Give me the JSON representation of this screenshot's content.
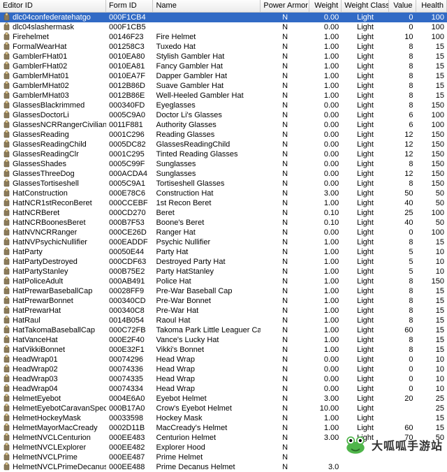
{
  "columns": [
    {
      "label": "Editor ID",
      "class": "c0",
      "align": "left"
    },
    {
      "label": "Form ID",
      "class": "c1",
      "align": "left"
    },
    {
      "label": "Name",
      "class": "c2",
      "align": "left"
    },
    {
      "label": "Power Armor",
      "class": "c3",
      "align": "center"
    },
    {
      "label": "Weight",
      "class": "c4",
      "align": "right"
    },
    {
      "label": "Weight Class",
      "class": "c5",
      "align": "center"
    },
    {
      "label": "Value",
      "class": "c6",
      "align": "right"
    },
    {
      "label": "Health",
      "class": "c7",
      "align": "right"
    }
  ],
  "icon_colors": {
    "body": "#8a7a5a",
    "head": "#d9c28a",
    "outline": "#6b5b3b"
  },
  "selected_row_bg": "#316ac5",
  "selected_row_fg": "#ffffff",
  "header_gradient_top": "#fdfdfd",
  "header_gradient_bottom": "#ebebeb",
  "rows": [
    {
      "sel": true,
      "editor": "dlc04confederatehatgo",
      "form": "000F1CB4",
      "name": "",
      "pa": "N",
      "wt": "0.00",
      "wc": "Light",
      "val": "0",
      "hp": "100"
    },
    {
      "editor": "dlc04slashermask",
      "form": "000F1CB5",
      "name": "",
      "pa": "N",
      "wt": "0.00",
      "wc": "Light",
      "val": "0",
      "hp": "100"
    },
    {
      "editor": "Firehelmet",
      "form": "00146F23",
      "name": "Fire Helmet",
      "pa": "N",
      "wt": "1.00",
      "wc": "Light",
      "val": "10",
      "hp": "100"
    },
    {
      "editor": "FormalWearHat",
      "form": "001258C3",
      "name": "Tuxedo Hat",
      "pa": "N",
      "wt": "1.00",
      "wc": "Light",
      "val": "8",
      "hp": "15"
    },
    {
      "editor": "GamblerFHat01",
      "form": "0010EA80",
      "name": "Stylish Gambler Hat",
      "pa": "N",
      "wt": "1.00",
      "wc": "Light",
      "val": "8",
      "hp": "15"
    },
    {
      "editor": "GamblerFHat02",
      "form": "0010EA81",
      "name": "Fancy Gambler Hat",
      "pa": "N",
      "wt": "1.00",
      "wc": "Light",
      "val": "8",
      "hp": "15"
    },
    {
      "editor": "GamblerMHat01",
      "form": "0010EA7F",
      "name": "Dapper Gambler Hat",
      "pa": "N",
      "wt": "1.00",
      "wc": "Light",
      "val": "8",
      "hp": "15"
    },
    {
      "editor": "GamblerMHat02",
      "form": "0012B86D",
      "name": "Suave Gambler Hat",
      "pa": "N",
      "wt": "1.00",
      "wc": "Light",
      "val": "8",
      "hp": "15"
    },
    {
      "editor": "GamblerMHat03",
      "form": "0012B86E",
      "name": "Well-Heeled Gambler Hat",
      "pa": "N",
      "wt": "1.00",
      "wc": "Light",
      "val": "8",
      "hp": "15"
    },
    {
      "editor": "GlassesBlackrimmed",
      "form": "000340FD",
      "name": "Eyeglasses",
      "pa": "N",
      "wt": "0.00",
      "wc": "Light",
      "val": "8",
      "hp": "150"
    },
    {
      "editor": "GlassesDoctorLi",
      "form": "0005C9A0",
      "name": "Doctor Li's Glasses",
      "pa": "N",
      "wt": "0.00",
      "wc": "Light",
      "val": "6",
      "hp": "100"
    },
    {
      "editor": "GlassesNCRRangerCivilian",
      "form": "0011F881",
      "name": "Authority Glasses",
      "pa": "N",
      "wt": "0.00",
      "wc": "Light",
      "val": "6",
      "hp": "100"
    },
    {
      "editor": "GlassesReading",
      "form": "0001C296",
      "name": "Reading Glasses",
      "pa": "N",
      "wt": "0.00",
      "wc": "Light",
      "val": "12",
      "hp": "150"
    },
    {
      "editor": "GlassesReadingChild",
      "form": "0005DC82",
      "name": "GlassesReadingChild",
      "pa": "N",
      "wt": "0.00",
      "wc": "Light",
      "val": "12",
      "hp": "150"
    },
    {
      "editor": "GlassesReadingClr",
      "form": "0001C295",
      "name": "Tinted Reading Glasses",
      "pa": "N",
      "wt": "0.00",
      "wc": "Light",
      "val": "12",
      "hp": "150"
    },
    {
      "editor": "GlassesShades",
      "form": "0005C99F",
      "name": "Sunglasses",
      "pa": "N",
      "wt": "0.00",
      "wc": "Light",
      "val": "8",
      "hp": "150"
    },
    {
      "editor": "GlassesThreeDog",
      "form": "000ACDA4",
      "name": "Sunglasses",
      "pa": "N",
      "wt": "0.00",
      "wc": "Light",
      "val": "12",
      "hp": "150"
    },
    {
      "editor": "GlassesTortiseshell",
      "form": "0005C9A1",
      "name": "Tortiseshell Glasses",
      "pa": "N",
      "wt": "0.00",
      "wc": "Light",
      "val": "8",
      "hp": "150"
    },
    {
      "editor": "HatConstruction",
      "form": "000E78C6",
      "name": "Construction Hat",
      "pa": "N",
      "wt": "3.00",
      "wc": "Light",
      "val": "50",
      "hp": "50"
    },
    {
      "editor": "HatNCR1stReconBeret",
      "form": "000CCEBF",
      "name": "1st Recon Beret",
      "pa": "N",
      "wt": "1.00",
      "wc": "Light",
      "val": "40",
      "hp": "50"
    },
    {
      "editor": "HatNCRBeret",
      "form": "000CD270",
      "name": "Beret",
      "pa": "N",
      "wt": "0.10",
      "wc": "Light",
      "val": "25",
      "hp": "100"
    },
    {
      "editor": "HatNCRBoonesBeret",
      "form": "000B7F53",
      "name": "Boone's Beret",
      "pa": "N",
      "wt": "0.10",
      "wc": "Light",
      "val": "40",
      "hp": "50"
    },
    {
      "editor": "HatNVNCRRanger",
      "form": "000CE26D",
      "name": "Ranger Hat",
      "pa": "N",
      "wt": "0.00",
      "wc": "Light",
      "val": "0",
      "hp": "100"
    },
    {
      "editor": "HatNVPsychicNullifier",
      "form": "000EADDF",
      "name": "Psychic Nullifier",
      "pa": "N",
      "wt": "1.00",
      "wc": "Light",
      "val": "8",
      "hp": "15"
    },
    {
      "editor": "HatParty",
      "form": "00050E44",
      "name": "Party Hat",
      "pa": "N",
      "wt": "1.00",
      "wc": "Light",
      "val": "5",
      "hp": "10"
    },
    {
      "editor": "HatPartyDestroyed",
      "form": "000CDF63",
      "name": "Destroyed Party Hat",
      "pa": "N",
      "wt": "1.00",
      "wc": "Light",
      "val": "5",
      "hp": "10"
    },
    {
      "editor": "HatPartyStanley",
      "form": "000B75E2",
      "name": "Party HatStanley",
      "pa": "N",
      "wt": "1.00",
      "wc": "Light",
      "val": "5",
      "hp": "10"
    },
    {
      "editor": "HatPoliceAdult",
      "form": "000AB491",
      "name": "Police Hat",
      "pa": "N",
      "wt": "1.00",
      "wc": "Light",
      "val": "8",
      "hp": "150"
    },
    {
      "editor": "HatPrewarBaseballCap",
      "form": "00028FF9",
      "name": "Pre-War Baseball Cap",
      "pa": "N",
      "wt": "1.00",
      "wc": "Light",
      "val": "8",
      "hp": "15"
    },
    {
      "editor": "HatPrewarBonnet",
      "form": "000340CD",
      "name": "Pre-War Bonnet",
      "pa": "N",
      "wt": "1.00",
      "wc": "Light",
      "val": "8",
      "hp": "15"
    },
    {
      "editor": "HatPrewarHat",
      "form": "000340C8",
      "name": "Pre-War Hat",
      "pa": "N",
      "wt": "1.00",
      "wc": "Light",
      "val": "8",
      "hp": "15"
    },
    {
      "editor": "HatRaul",
      "form": "0014B054",
      "name": "Raoul Hat",
      "pa": "N",
      "wt": "1.00",
      "wc": "Light",
      "val": "8",
      "hp": "15"
    },
    {
      "editor": "HatTakomaBaseballCap",
      "form": "000C72FB",
      "name": "Takoma Park Little Leaguer Cap",
      "pa": "N",
      "wt": "1.00",
      "wc": "Light",
      "val": "60",
      "hp": "15"
    },
    {
      "editor": "HatVanceHat",
      "form": "000E2F40",
      "name": "Vance's Lucky Hat",
      "pa": "N",
      "wt": "1.00",
      "wc": "Light",
      "val": "8",
      "hp": "15"
    },
    {
      "editor": "HatVikkiBonnet",
      "form": "000E32F1",
      "name": "Vikki's Bonnet",
      "pa": "N",
      "wt": "1.00",
      "wc": "Light",
      "val": "8",
      "hp": "15"
    },
    {
      "editor": "HeadWrap01",
      "form": "00074296",
      "name": "Head Wrap",
      "pa": "N",
      "wt": "0.00",
      "wc": "Light",
      "val": "0",
      "hp": "10"
    },
    {
      "editor": "HeadWrap02",
      "form": "00074336",
      "name": "Head Wrap",
      "pa": "N",
      "wt": "0.00",
      "wc": "Light",
      "val": "0",
      "hp": "10"
    },
    {
      "editor": "HeadWrap03",
      "form": "00074335",
      "name": "Head Wrap",
      "pa": "N",
      "wt": "0.00",
      "wc": "Light",
      "val": "0",
      "hp": "10"
    },
    {
      "editor": "HeadWrap04",
      "form": "00074334",
      "name": "Head Wrap",
      "pa": "N",
      "wt": "0.00",
      "wc": "Light",
      "val": "0",
      "hp": "10"
    },
    {
      "editor": "HelmetEyebot",
      "form": "0004E6A0",
      "name": "Eyebot Helmet",
      "pa": "N",
      "wt": "3.00",
      "wc": "Light",
      "val": "20",
      "hp": "25"
    },
    {
      "editor": "HelmetEyebotCaravanSpecial",
      "form": "000B17A0",
      "name": "Crow's Eyebot Helmet",
      "pa": "N",
      "wt": "10.00",
      "wc": "Light",
      "val": "",
      "hp": "25"
    },
    {
      "editor": "HelmetHockeyMask",
      "form": "00033598",
      "name": "Hockey Mask",
      "pa": "N",
      "wt": "1.00",
      "wc": "Light",
      "val": "",
      "hp": "15"
    },
    {
      "editor": "HelmetMayorMacCready",
      "form": "0002D11B",
      "name": "MacCready's Helmet",
      "pa": "N",
      "wt": "1.00",
      "wc": "Light",
      "val": "60",
      "hp": "15"
    },
    {
      "editor": "HelmetNVCLCenturion",
      "form": "000EE483",
      "name": "Centurion Helmet",
      "pa": "N",
      "wt": "3.00",
      "wc": "Light",
      "val": "70",
      "hp": "50"
    },
    {
      "editor": "HelmetNVCLExplorer",
      "form": "000EE482",
      "name": "Explorer Hood",
      "pa": "N",
      "wt": "",
      "wc": "",
      "val": "",
      "hp": ""
    },
    {
      "editor": "HelmetNVCLPrime",
      "form": "000EE487",
      "name": "Prime Helmet",
      "pa": "N",
      "wt": "",
      "wc": "",
      "val": "",
      "hp": ""
    },
    {
      "editor": "HelmetNVCLPrimeDecanus",
      "form": "000EE488",
      "name": "Prime Decanus Helmet",
      "pa": "N",
      "wt": "3.0",
      "wc": "",
      "val": "",
      "hp": ""
    }
  ],
  "watermark_text": "大呱呱手游站",
  "watermark_frog_color": "#4fb54a"
}
